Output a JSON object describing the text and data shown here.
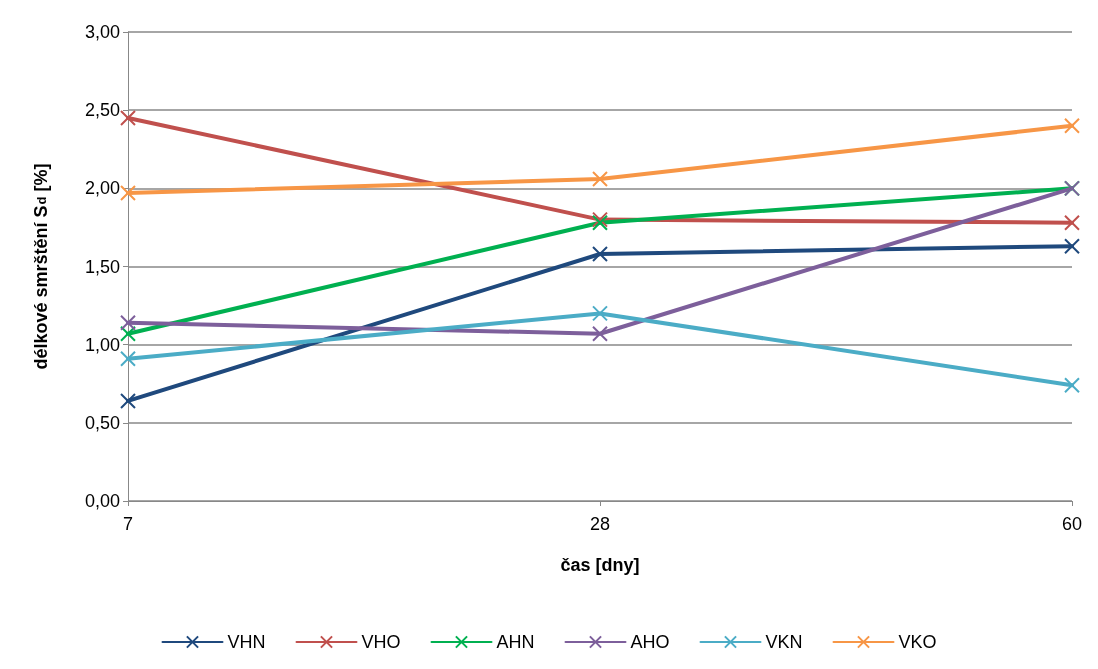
{
  "chart_data": {
    "type": "line",
    "xlabel": "čas [dny]",
    "ylabel": "délkové smrštění S$_{d}$ [%]",
    "categories": [
      "7",
      "28",
      "60"
    ],
    "series": [
      {
        "name": "VHN",
        "color": "#1f497d",
        "values": [
          0.64,
          1.58,
          1.63
        ]
      },
      {
        "name": "VHO",
        "color": "#c0504d",
        "values": [
          2.45,
          1.8,
          1.78
        ]
      },
      {
        "name": "AHN",
        "color": "#00b050",
        "values": [
          1.07,
          1.78,
          2.0
        ]
      },
      {
        "name": "AHO",
        "color": "#7d5f9b",
        "values": [
          1.14,
          1.07,
          2.0
        ]
      },
      {
        "name": "VKN",
        "color": "#4bacc6",
        "values": [
          0.91,
          1.2,
          0.74
        ]
      },
      {
        "name": "VKO",
        "color": "#f79646",
        "values": [
          1.97,
          2.06,
          2.4
        ]
      }
    ],
    "ylim": [
      0,
      3
    ],
    "yticks": [
      {
        "value": 0,
        "label": "0,00"
      },
      {
        "value": 0.5,
        "label": "0,50"
      },
      {
        "value": 1,
        "label": "1,00"
      },
      {
        "value": 1.5,
        "label": "1,50"
      },
      {
        "value": 2,
        "label": "2,00"
      },
      {
        "value": 2.5,
        "label": "2,50"
      },
      {
        "value": 3,
        "label": "3,00"
      }
    ],
    "grid": "y",
    "legend": "bottom",
    "line_style": "solid",
    "marker": "cross"
  }
}
